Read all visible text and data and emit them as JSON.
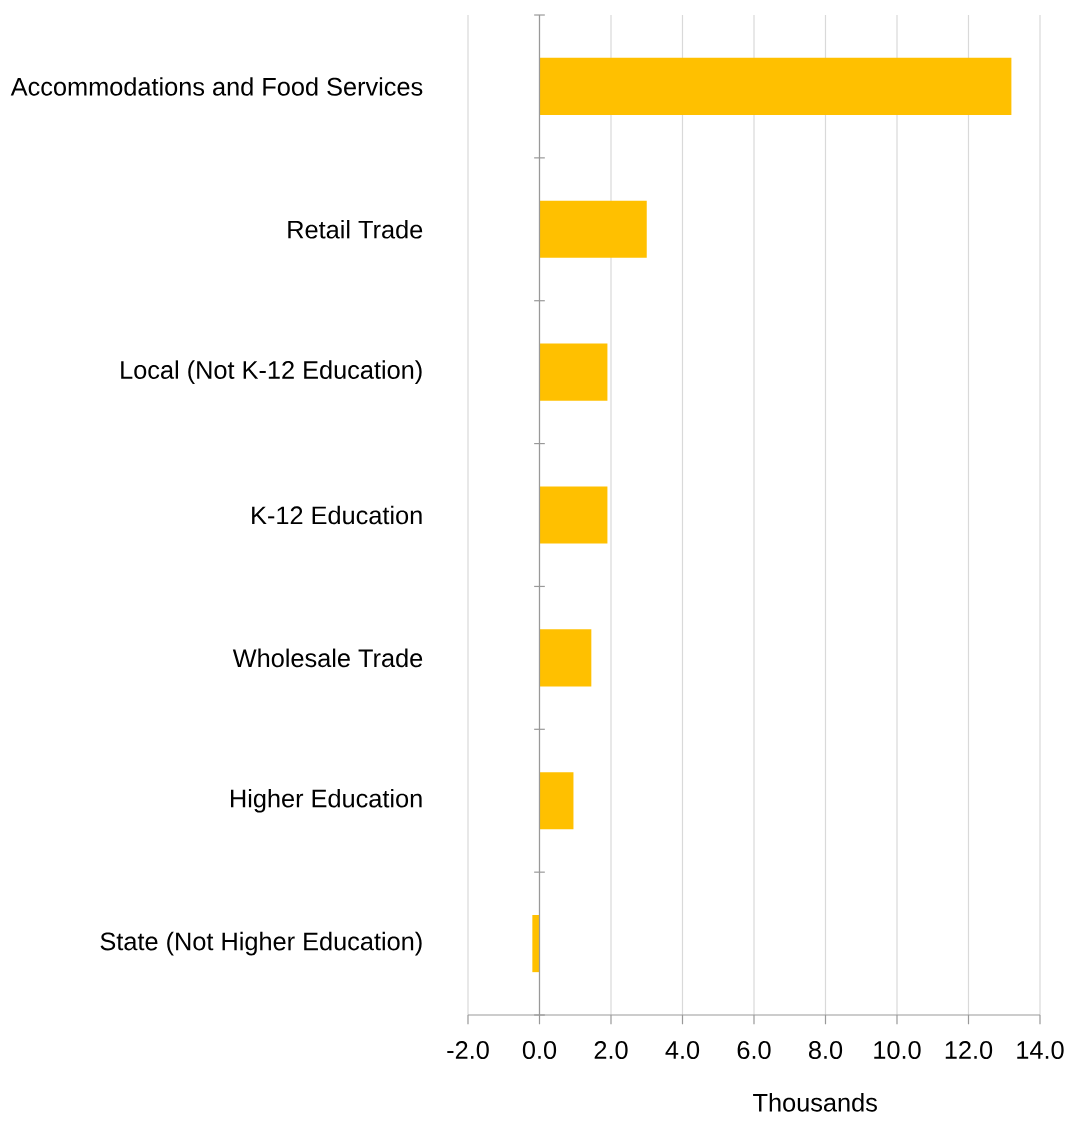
{
  "chart_data": {
    "type": "bar",
    "orientation": "horizontal",
    "xlabel": "Thousands",
    "categories": [
      "Accommodations and Food Services",
      "Retail Trade",
      "Local (Not K-12 Education)",
      "K-12 Education",
      "Wholesale Trade",
      "Higher Education",
      "State (Not Higher Education)"
    ],
    "values": [
      13.2,
      3.0,
      1.9,
      1.9,
      1.45,
      0.95,
      -0.2
    ],
    "color": "#ffc000",
    "xlim": [
      -2,
      14
    ],
    "xticks": [
      {
        "value": -2,
        "label": "-2.0"
      },
      {
        "value": 0,
        "label": "0.0"
      },
      {
        "value": 2,
        "label": "2.0"
      },
      {
        "value": 4,
        "label": "4.0"
      },
      {
        "value": 6,
        "label": "6.0"
      },
      {
        "value": 8,
        "label": "8.0"
      },
      {
        "value": 10,
        "label": "10.0"
      },
      {
        "value": 12,
        "label": "12.0"
      },
      {
        "value": 14,
        "label": "14.0"
      }
    ],
    "grid": "x"
  }
}
